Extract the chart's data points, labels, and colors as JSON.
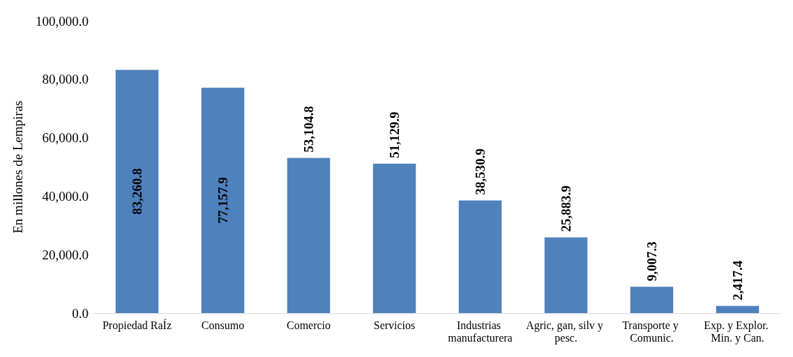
{
  "chart_data": {
    "type": "bar",
    "ylabel": "En millones de Lempiras",
    "categories": [
      "Propiedad RaÍz",
      "Consumo",
      "Comercio",
      "Servicios",
      "Industrias manufacturera",
      "Agric, gan, silv y pesc.",
      "Transporte y Comunic.",
      "Exp. y Explor. Min. y Can."
    ],
    "values": [
      83260.8,
      77157.9,
      53104.8,
      51129.9,
      38530.9,
      25883.9,
      9007.3,
      2417.4
    ],
    "value_labels": [
      "83,260.8",
      "77,157.9",
      "53,104.8",
      "51,129.9",
      "38,530.9",
      "25,883.9",
      "9,007.3",
      "2,417.4"
    ],
    "color": "#4f81bd",
    "ylim": [
      0,
      100000
    ],
    "yticks": [
      {
        "value": 0,
        "label": "0.0"
      },
      {
        "value": 20000,
        "label": "20,000.0"
      },
      {
        "value": 40000,
        "label": "40,000.0"
      },
      {
        "value": 60000,
        "label": "60,000.0"
      },
      {
        "value": 80000,
        "label": "80,000.0"
      },
      {
        "value": 100000,
        "label": "100,000.0"
      }
    ],
    "grid": false
  }
}
